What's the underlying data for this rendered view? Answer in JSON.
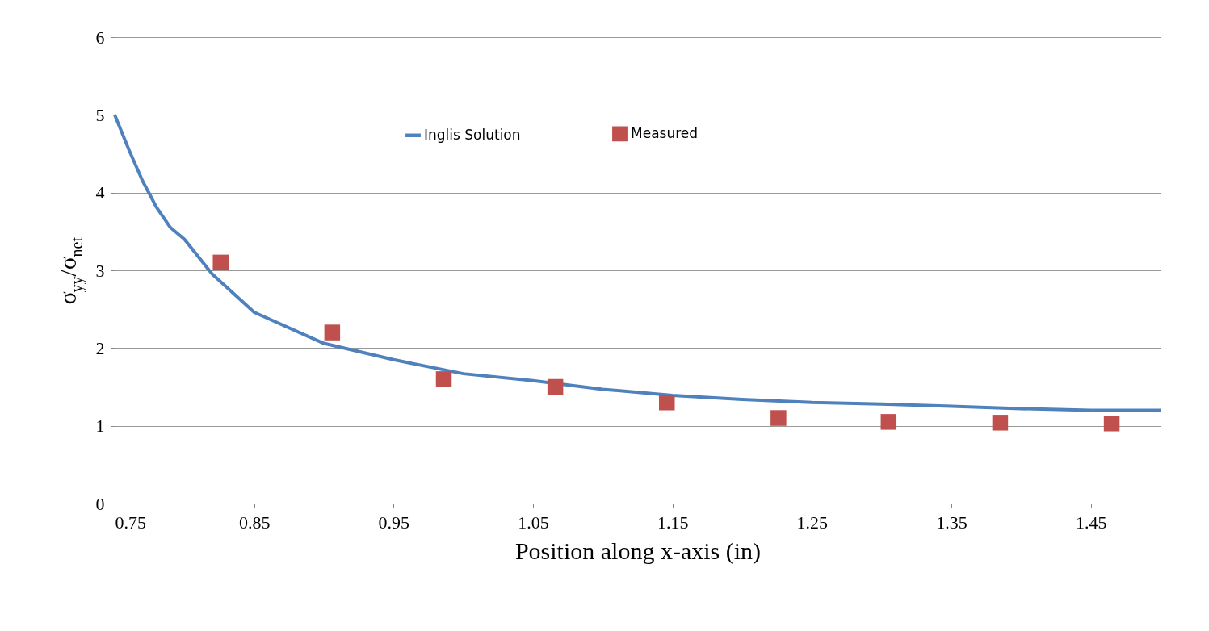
{
  "chart_data": {
    "type": "line",
    "xlabel": "Position along x-axis (in)",
    "ylabel": "σ$_{yy}$/σ$_{net}$",
    "xlim": [
      0.75,
      1.5
    ],
    "xticks": [
      0.75,
      0.85,
      0.95,
      1.05,
      1.15,
      1.25,
      1.35,
      1.45
    ],
    "ylim": [
      0,
      6
    ],
    "yticks": [
      0,
      1,
      2,
      3,
      4,
      5,
      6
    ],
    "grid": "y",
    "legend": "top",
    "series": [
      {
        "name": "Inglis Solution",
        "marker": "none",
        "line_style": "solid",
        "color": "#4f81bd",
        "x": [
          0.75,
          0.76,
          0.77,
          0.78,
          0.79,
          0.8,
          0.82,
          0.85,
          0.9,
          0.95,
          1.0,
          1.05,
          1.1,
          1.15,
          1.2,
          1.25,
          1.3,
          1.35,
          1.4,
          1.45,
          1.5
        ],
        "values": [
          5.0,
          4.56,
          4.15,
          3.81,
          3.55,
          3.4,
          2.95,
          2.46,
          2.06,
          1.85,
          1.67,
          1.58,
          1.47,
          1.39,
          1.34,
          1.3,
          1.28,
          1.25,
          1.22,
          1.2,
          1.2
        ]
      },
      {
        "name": "Measured",
        "type": "scatter",
        "marker": "square",
        "color": "#c0504d",
        "x": [
          0.826,
          0.906,
          0.986,
          1.066,
          1.146,
          1.226,
          1.305,
          1.385,
          1.465
        ],
        "values": [
          3.1,
          2.2,
          1.6,
          1.5,
          1.3,
          1.1,
          1.05,
          1.04,
          1.03
        ]
      }
    ]
  }
}
